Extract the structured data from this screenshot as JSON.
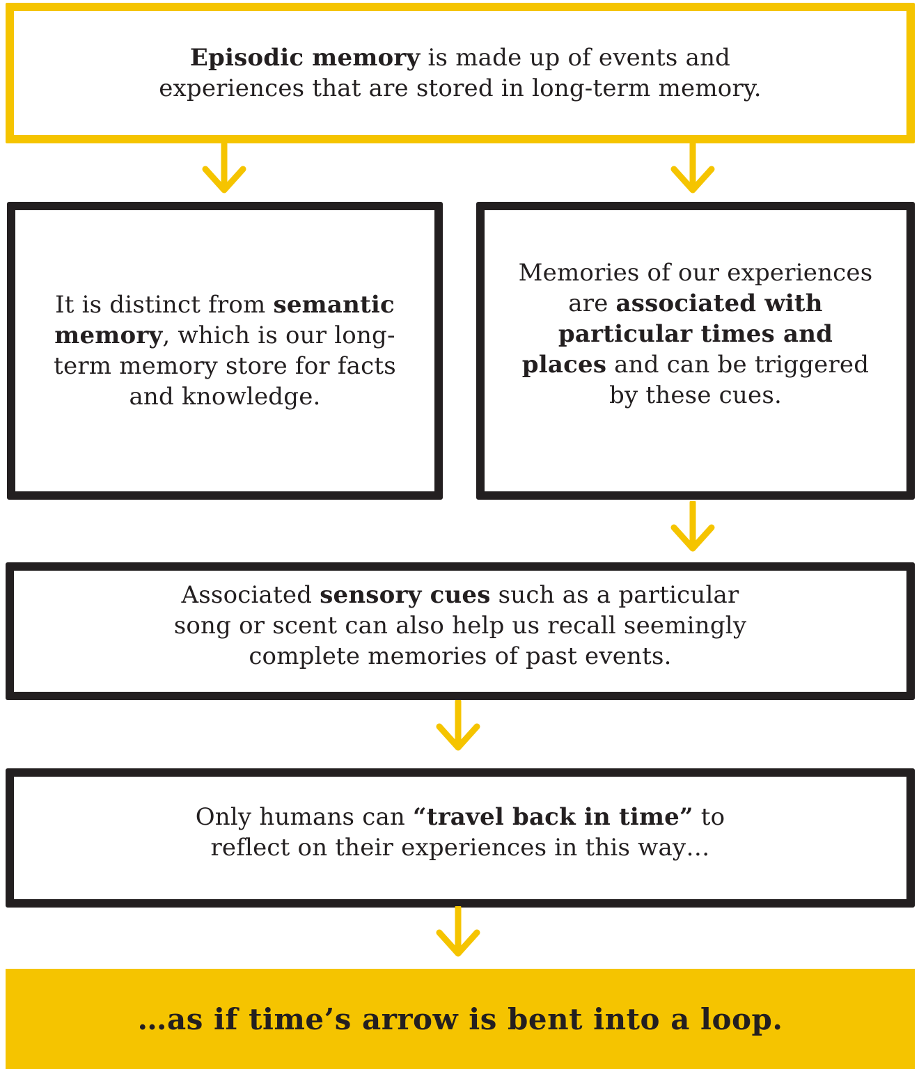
{
  "colors": {
    "accent_yellow": "#f5c400",
    "ink_black": "#231f20",
    "background": "#ffffff"
  },
  "box1": {
    "bold": "Episodic memory",
    "rest_line1": " is made up of events and",
    "line2": "experiences that are stored in long-term memory."
  },
  "box2": {
    "lead": "It is distinct from ",
    "bold": "semantic memory",
    "rest": ", which is our long-term memory store for facts and knowledge."
  },
  "box3": {
    "lead": "Memories of our experiences are ",
    "bold": "associated with particular times and places",
    "rest": " and can be triggered by these cues."
  },
  "box4": {
    "lead": "Associated ",
    "bold": "sensory cues",
    "rest": " such as a particular song or scent can also help us recall seemingly complete memories of past events."
  },
  "box5": {
    "lead": "Only humans can ",
    "bold": "“travel back in time”",
    "rest": " to reflect on their experiences in this way…"
  },
  "final": {
    "text": "…as if time’s arrow is bent into a loop."
  },
  "icons": {
    "arrow": "down-arrow-icon"
  }
}
